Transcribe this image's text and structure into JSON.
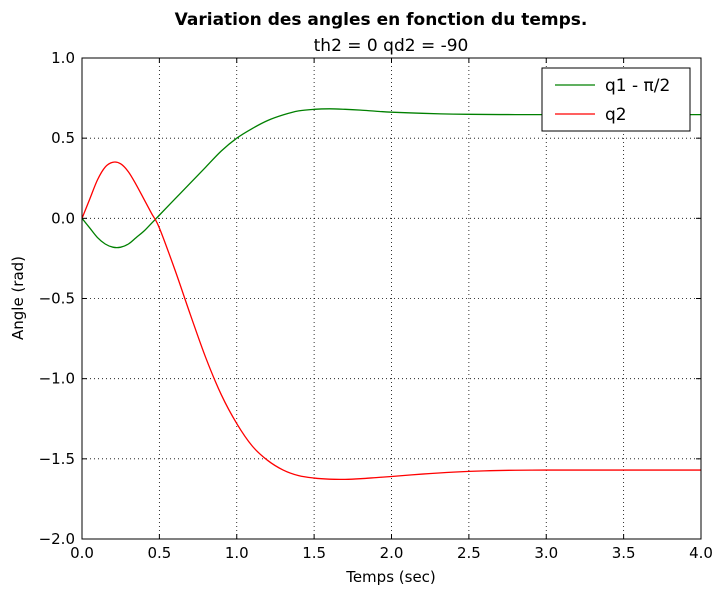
{
  "chart_data": {
    "type": "line",
    "title": "Variation des angles en fonction du temps.",
    "subtitle": "th2 = 0 qd2 = -90",
    "xlabel": "Temps (sec)",
    "ylabel": "Angle (rad)",
    "xlim": [
      0,
      4
    ],
    "ylim": [
      -2,
      1
    ],
    "xticks": [
      0,
      0.5,
      1,
      1.5,
      2,
      2.5,
      3,
      3.5,
      4
    ],
    "yticks": [
      -2,
      -1.5,
      -1,
      -0.5,
      0,
      0.5,
      1
    ],
    "xtick_labels": [
      "0.0",
      "0.5",
      "1.0",
      "1.5",
      "2.0",
      "2.5",
      "3.0",
      "3.5",
      "4.0"
    ],
    "ytick_labels": [
      "−2.0",
      "−1.5",
      "−1.0",
      "−0.5",
      "0.0",
      "0.5",
      "1.0"
    ],
    "grid": true,
    "legend_position": "top-right",
    "series": [
      {
        "name": "q1 - π/2",
        "color": "#008000",
        "x": [
          0,
          0.05,
          0.1,
          0.15,
          0.2,
          0.25,
          0.3,
          0.35,
          0.4,
          0.45,
          0.5,
          0.6,
          0.7,
          0.8,
          0.9,
          1.0,
          1.1,
          1.2,
          1.3,
          1.4,
          1.5,
          1.6,
          1.7,
          1.8,
          1.9,
          2.0,
          2.2,
          2.4,
          2.6,
          2.8,
          3.0,
          3.2,
          3.5,
          3.8,
          4.0
        ],
        "y": [
          0,
          -0.06,
          -0.12,
          -0.16,
          -0.18,
          -0.18,
          -0.16,
          -0.12,
          -0.08,
          -0.03,
          0.02,
          0.12,
          0.22,
          0.32,
          0.42,
          0.5,
          0.56,
          0.61,
          0.645,
          0.67,
          0.68,
          0.683,
          0.68,
          0.675,
          0.668,
          0.662,
          0.655,
          0.65,
          0.648,
          0.647,
          0.647,
          0.647,
          0.647,
          0.647,
          0.647
        ]
      },
      {
        "name": "q2",
        "color": "#ff0000",
        "x": [
          0,
          0.05,
          0.1,
          0.15,
          0.2,
          0.25,
          0.3,
          0.35,
          0.4,
          0.45,
          0.5,
          0.6,
          0.7,
          0.8,
          0.9,
          1.0,
          1.1,
          1.2,
          1.3,
          1.4,
          1.5,
          1.6,
          1.7,
          1.8,
          1.9,
          2.0,
          2.2,
          2.4,
          2.6,
          2.8,
          3.0,
          3.2,
          3.5,
          3.8,
          4.0
        ],
        "y": [
          0,
          0.12,
          0.24,
          0.32,
          0.35,
          0.34,
          0.29,
          0.21,
          0.12,
          0.03,
          -0.06,
          -0.32,
          -0.6,
          -0.87,
          -1.1,
          -1.28,
          -1.42,
          -1.51,
          -1.57,
          -1.605,
          -1.62,
          -1.627,
          -1.628,
          -1.624,
          -1.617,
          -1.61,
          -1.595,
          -1.583,
          -1.575,
          -1.571,
          -1.57,
          -1.57,
          -1.57,
          -1.57,
          -1.57
        ]
      }
    ]
  }
}
